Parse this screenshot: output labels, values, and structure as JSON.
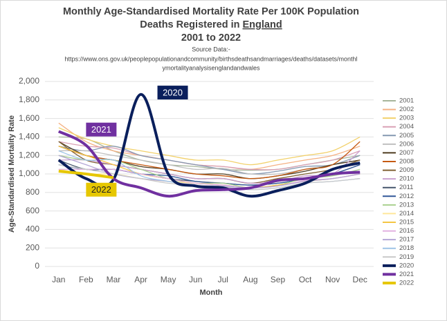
{
  "chart_data": {
    "type": "line",
    "title": "Monthly Age-Standardised Mortality Rate Per 100K Population",
    "title_line2": [
      "Deaths Registered in",
      "England"
    ],
    "title_line3": "2001 to 2022",
    "source": [
      "Source Data:-",
      "https://www.ons.gov.uk/peoplepopulationandcommunity/birthsdeathsandmarriages/deaths/datasets/monthl",
      "ymortalityanalysisenglandandwales"
    ],
    "y_label": "Age-Standardised Mortality Rate",
    "x_label": "Month",
    "annotations": [
      {
        "text": "2020",
        "color": "#0a1f5c",
        "text_color": "#ffffff",
        "x": "Apr",
        "y": 1880
      },
      {
        "text": "2021",
        "color": "#7030a0",
        "text_color": "#ffffff",
        "x": "Feb",
        "y": 1480
      },
      {
        "text": "2022",
        "color": "#e6c700",
        "text_color": "#222222",
        "x": "Feb",
        "y": 830
      }
    ],
    "categories": [
      "Jan",
      "Feb",
      "Mar",
      "Apr",
      "May",
      "Jun",
      "Jul",
      "Aug",
      "Sep",
      "Oct",
      "Nov",
      "Dec"
    ],
    "ylim": [
      0,
      2000
    ],
    "yticks": [
      0,
      200,
      400,
      600,
      800,
      {
        "value": 1000,
        "label": "1,000"
      },
      {
        "value": 1200,
        "label": "1,200"
      },
      {
        "value": 1400,
        "label": "1,400"
      },
      {
        "value": 1600,
        "label": "1,600"
      },
      {
        "value": 1800,
        "label": "1,800"
      },
      {
        "value": 2000,
        "label": "2,000"
      }
    ],
    "grid": true,
    "legend": "right",
    "series": [
      {
        "name": "2001",
        "color": "#a6b59a",
        "values": [
          1400,
          1380,
          1250,
          1150,
          1100,
          1080,
          1050,
          1040,
          1050,
          1100,
          1150,
          1200
        ]
      },
      {
        "name": "2002",
        "color": "#f4b183",
        "values": [
          1550,
          1350,
          1250,
          1200,
          1150,
          1100,
          1080,
          1050,
          1100,
          1150,
          1200,
          1300
        ]
      },
      {
        "name": "2003",
        "color": "#f2d16b",
        "values": [
          1500,
          1380,
          1300,
          1250,
          1200,
          1150,
          1150,
          1100,
          1150,
          1200,
          1250,
          1400
        ]
      },
      {
        "name": "2004",
        "color": "#d9a0b5",
        "values": [
          1350,
          1300,
          1280,
          1200,
          1150,
          1100,
          1080,
          1050,
          1050,
          1100,
          1150,
          1250
        ]
      },
      {
        "name": "2005",
        "color": "#8497b0",
        "values": [
          1300,
          1250,
          1300,
          1200,
          1150,
          1100,
          1050,
          1000,
          1030,
          1080,
          1100,
          1200
        ]
      },
      {
        "name": "2006",
        "color": "#bfbfbf",
        "values": [
          1250,
          1250,
          1200,
          1150,
          1100,
          1050,
          1060,
          1000,
          1000,
          1050,
          1100,
          1150
        ]
      },
      {
        "name": "2007",
        "color": "#4d3b1f",
        "values": [
          1350,
          1200,
          1150,
          1080,
          1050,
          1000,
          1000,
          950,
          980,
          1030,
          1100,
          1150
        ]
      },
      {
        "name": "2008",
        "color": "#c55a11",
        "values": [
          1300,
          1200,
          1150,
          1100,
          1050,
          1000,
          980,
          950,
          980,
          1050,
          1100,
          1350
        ]
      },
      {
        "name": "2009",
        "color": "#7f6032",
        "values": [
          1350,
          1150,
          1100,
          1050,
          1000,
          950,
          950,
          900,
          950,
          1000,
          1050,
          1150
        ]
      },
      {
        "name": "2010",
        "color": "#c9a0d0",
        "values": [
          1150,
          1150,
          1100,
          1050,
          1000,
          950,
          950,
          900,
          920,
          980,
          1000,
          1250
        ]
      },
      {
        "name": "2011",
        "color": "#44546a",
        "values": [
          1150,
          1050,
          1050,
          1000,
          950,
          920,
          900,
          880,
          900,
          950,
          1000,
          1100
        ]
      },
      {
        "name": "2012",
        "color": "#2f5597",
        "values": [
          1100,
          1050,
          1050,
          1000,
          980,
          920,
          900,
          880,
          900,
          950,
          1000,
          1100
        ]
      },
      {
        "name": "2013",
        "color": "#a9d18e",
        "values": [
          1200,
          1150,
          1150,
          1050,
          950,
          900,
          900,
          850,
          880,
          950,
          980,
          1050
        ]
      },
      {
        "name": "2014",
        "color": "#ffe699",
        "values": [
          1050,
          1000,
          1000,
          950,
          920,
          900,
          880,
          850,
          870,
          920,
          950,
          1000
        ]
      },
      {
        "name": "2015",
        "color": "#f4c542",
        "values": [
          1300,
          1200,
          1100,
          1000,
          950,
          900,
          880,
          850,
          880,
          920,
          950,
          1000
        ]
      },
      {
        "name": "2016",
        "color": "#e2b0e0",
        "values": [
          1050,
          1050,
          1050,
          1000,
          950,
          900,
          880,
          850,
          870,
          930,
          950,
          1000
        ]
      },
      {
        "name": "2017",
        "color": "#b4a7d6",
        "values": [
          1200,
          1100,
          1000,
          950,
          920,
          880,
          870,
          850,
          870,
          920,
          950,
          1000
        ]
      },
      {
        "name": "2018",
        "color": "#9dc3e6",
        "values": [
          1250,
          1150,
          1150,
          980,
          920,
          870,
          860,
          830,
          850,
          900,
          920,
          950
        ]
      },
      {
        "name": "2019",
        "color": "#c9c9c9",
        "values": [
          1100,
          1050,
          1000,
          950,
          900,
          880,
          860,
          830,
          850,
          900,
          920,
          950
        ]
      },
      {
        "name": "2020",
        "color": "#0a1f5c",
        "values": [
          1150,
          950,
          940,
          1860,
          1000,
          870,
          850,
          760,
          820,
          900,
          1050,
          1120
        ]
      },
      {
        "name": "2021",
        "color": "#7030a0",
        "values": [
          1460,
          1310,
          950,
          850,
          760,
          820,
          830,
          850,
          930,
          950,
          1000,
          1020
        ]
      },
      {
        "name": "2022",
        "color": "#e6c700",
        "values": [
          1030,
          1000,
          960,
          null,
          null,
          null,
          null,
          null,
          null,
          null,
          null,
          null
        ]
      }
    ]
  }
}
